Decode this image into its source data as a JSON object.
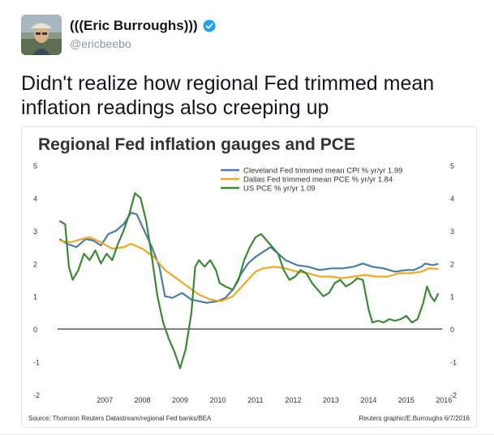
{
  "tweet": {
    "display_name": "(((Eric Burroughs)))",
    "handle": "@ericbeebo",
    "text": "Didn't realize how regional Fed trimmed mean inflation readings also creeping up"
  },
  "icons": {
    "verified": "verified-badge-icon",
    "avatar": "avatar"
  },
  "colors": {
    "cleveland": "#4a7ca8",
    "dallas": "#f0a820",
    "pce": "#3a8a35",
    "text": "#14171a",
    "handle": "#8899a6"
  },
  "chart_data": {
    "type": "line",
    "title": "Regional Fed inflation gauges and PCE",
    "source": "Source: Thomson Reuters Datastream/regional Fed banks/BEA",
    "credit": "Reuters graphic/E.Burroughs 6/7/2016",
    "xlim": [
      2006.25,
      2016.45
    ],
    "ylim": [
      -2,
      5
    ],
    "y_ticks": [
      "5",
      "4",
      "3",
      "2",
      "1",
      "0",
      "-1",
      "-2"
    ],
    "x_ticks": [
      "2007",
      "2008",
      "2009",
      "2010",
      "2011",
      "2012",
      "2013",
      "2014",
      "2015",
      "2016"
    ],
    "grid": false,
    "legend_position": "top-right",
    "series": [
      {
        "name": "Cleveland Fed trimmed mean CPI % yr/yr 1.99",
        "color": "#4a7ca8",
        "points": [
          [
            2006.3,
            2.75
          ],
          [
            2006.5,
            2.6
          ],
          [
            2006.75,
            2.5
          ],
          [
            2007.0,
            2.75
          ],
          [
            2007.2,
            2.7
          ],
          [
            2007.4,
            2.55
          ],
          [
            2007.6,
            2.9
          ],
          [
            2007.8,
            3.0
          ],
          [
            2008.0,
            3.2
          ],
          [
            2008.2,
            3.55
          ],
          [
            2008.35,
            3.5
          ],
          [
            2008.55,
            3.0
          ],
          [
            2008.75,
            2.5
          ],
          [
            2008.95,
            1.9
          ],
          [
            2009.1,
            1.0
          ],
          [
            2009.3,
            0.95
          ],
          [
            2009.55,
            1.1
          ],
          [
            2009.8,
            0.9
          ],
          [
            2010.2,
            0.8
          ],
          [
            2010.5,
            0.85
          ],
          [
            2010.7,
            0.95
          ],
          [
            2010.9,
            1.2
          ],
          [
            2011.1,
            1.65
          ],
          [
            2011.3,
            2.0
          ],
          [
            2011.5,
            2.2
          ],
          [
            2011.7,
            2.35
          ],
          [
            2011.9,
            2.5
          ],
          [
            2012.1,
            2.3
          ],
          [
            2012.3,
            2.1
          ],
          [
            2012.6,
            1.95
          ],
          [
            2012.9,
            1.9
          ],
          [
            2013.2,
            1.8
          ],
          [
            2013.5,
            1.85
          ],
          [
            2013.8,
            1.85
          ],
          [
            2014.1,
            1.9
          ],
          [
            2014.35,
            2.0
          ],
          [
            2014.6,
            1.9
          ],
          [
            2014.9,
            1.85
          ],
          [
            2015.2,
            1.75
          ],
          [
            2015.5,
            1.8
          ],
          [
            2015.7,
            1.8
          ],
          [
            2015.9,
            1.9
          ],
          [
            2016.0,
            2.0
          ],
          [
            2016.2,
            1.95
          ],
          [
            2016.35,
            1.99
          ]
        ]
      },
      {
        "name": "Dallas Fed trimmed mean PCE % yr/yr 1.84",
        "color": "#f0a820",
        "points": [
          [
            2006.3,
            2.7
          ],
          [
            2006.6,
            2.65
          ],
          [
            2006.9,
            2.75
          ],
          [
            2007.1,
            2.8
          ],
          [
            2007.4,
            2.65
          ],
          [
            2007.7,
            2.45
          ],
          [
            2008.0,
            2.5
          ],
          [
            2008.2,
            2.6
          ],
          [
            2008.5,
            2.45
          ],
          [
            2008.8,
            2.2
          ],
          [
            2009.1,
            1.8
          ],
          [
            2009.4,
            1.55
          ],
          [
            2009.7,
            1.3
          ],
          [
            2010.0,
            1.05
          ],
          [
            2010.3,
            0.9
          ],
          [
            2010.6,
            0.85
          ],
          [
            2010.9,
            1.0
          ],
          [
            2011.1,
            1.25
          ],
          [
            2011.3,
            1.5
          ],
          [
            2011.5,
            1.75
          ],
          [
            2011.7,
            1.85
          ],
          [
            2012.0,
            1.9
          ],
          [
            2012.3,
            1.85
          ],
          [
            2012.6,
            1.75
          ],
          [
            2012.9,
            1.7
          ],
          [
            2013.2,
            1.6
          ],
          [
            2013.5,
            1.6
          ],
          [
            2013.8,
            1.55
          ],
          [
            2014.1,
            1.6
          ],
          [
            2014.4,
            1.65
          ],
          [
            2014.7,
            1.6
          ],
          [
            2015.0,
            1.6
          ],
          [
            2015.3,
            1.7
          ],
          [
            2015.6,
            1.7
          ],
          [
            2015.9,
            1.75
          ],
          [
            2016.1,
            1.85
          ],
          [
            2016.35,
            1.84
          ]
        ]
      },
      {
        "name": "US PCE % yr/yr 1.09",
        "color": "#3a8a35",
        "points": [
          [
            2006.3,
            3.3
          ],
          [
            2006.45,
            3.2
          ],
          [
            2006.55,
            1.9
          ],
          [
            2006.65,
            1.5
          ],
          [
            2006.8,
            1.8
          ],
          [
            2006.95,
            2.3
          ],
          [
            2007.1,
            2.1
          ],
          [
            2007.25,
            2.4
          ],
          [
            2007.4,
            2.0
          ],
          [
            2007.55,
            2.3
          ],
          [
            2007.7,
            2.1
          ],
          [
            2007.85,
            2.6
          ],
          [
            2008.0,
            3.0
          ],
          [
            2008.15,
            3.5
          ],
          [
            2008.3,
            4.15
          ],
          [
            2008.45,
            4.0
          ],
          [
            2008.6,
            3.3
          ],
          [
            2008.75,
            2.2
          ],
          [
            2008.9,
            1.0
          ],
          [
            2009.05,
            0.2
          ],
          [
            2009.2,
            -0.3
          ],
          [
            2009.35,
            -0.7
          ],
          [
            2009.5,
            -1.2
          ],
          [
            2009.65,
            -0.6
          ],
          [
            2009.8,
            0.5
          ],
          [
            2009.9,
            1.9
          ],
          [
            2010.0,
            2.1
          ],
          [
            2010.15,
            1.9
          ],
          [
            2010.3,
            2.1
          ],
          [
            2010.45,
            1.8
          ],
          [
            2010.55,
            1.4
          ],
          [
            2010.7,
            1.3
          ],
          [
            2010.9,
            1.2
          ],
          [
            2011.05,
            1.5
          ],
          [
            2011.2,
            2.1
          ],
          [
            2011.35,
            2.5
          ],
          [
            2011.5,
            2.8
          ],
          [
            2011.65,
            2.9
          ],
          [
            2011.8,
            2.7
          ],
          [
            2011.95,
            2.5
          ],
          [
            2012.1,
            2.3
          ],
          [
            2012.25,
            1.8
          ],
          [
            2012.4,
            1.5
          ],
          [
            2012.55,
            1.6
          ],
          [
            2012.7,
            1.8
          ],
          [
            2012.85,
            1.7
          ],
          [
            2013.0,
            1.4
          ],
          [
            2013.15,
            1.2
          ],
          [
            2013.3,
            1.0
          ],
          [
            2013.45,
            1.1
          ],
          [
            2013.6,
            1.4
          ],
          [
            2013.75,
            1.5
          ],
          [
            2013.9,
            1.3
          ],
          [
            2014.05,
            1.4
          ],
          [
            2014.2,
            1.55
          ],
          [
            2014.35,
            1.5
          ],
          [
            2014.5,
            0.6
          ],
          [
            2014.6,
            0.2
          ],
          [
            2014.75,
            0.25
          ],
          [
            2014.9,
            0.2
          ],
          [
            2015.05,
            0.3
          ],
          [
            2015.2,
            0.25
          ],
          [
            2015.35,
            0.3
          ],
          [
            2015.5,
            0.4
          ],
          [
            2015.65,
            0.2
          ],
          [
            2015.8,
            0.3
          ],
          [
            2015.95,
            0.8
          ],
          [
            2016.05,
            1.3
          ],
          [
            2016.15,
            1.0
          ],
          [
            2016.25,
            0.85
          ],
          [
            2016.35,
            1.09
          ]
        ]
      }
    ]
  }
}
